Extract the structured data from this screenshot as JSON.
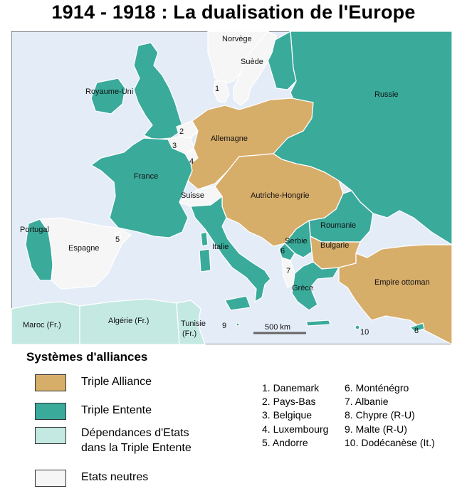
{
  "title": "1914 - 1918 : La dualisation de l'Europe",
  "colors": {
    "sea": "#e3ecf7",
    "triple_alliance": "#d7ad6a",
    "triple_entente": "#3aaa9b",
    "dependances": "#c3e9e2",
    "neutres": "#f6f6f6",
    "border": "#ffffff"
  },
  "map": {
    "countries": {
      "norvege": "Norvège",
      "suede": "Suède",
      "russie": "Russie",
      "royaume_uni": "Royaume-Uni",
      "allemagne": "Allemagne",
      "france": "France",
      "suisse": "Suisse",
      "autriche_hongrie": "Autriche-Hongrie",
      "roumanie": "Roumanie",
      "serbie": "Serbie",
      "bulgarie": "Bulgarie",
      "portugal": "Portugal",
      "espagne": "Espagne",
      "italie": "Italie",
      "grece": "Grèce",
      "empire_ottoman": "Empire ottoman",
      "maroc": "Maroc (Fr.)",
      "algerie": "Algérie (Fr.)",
      "tunisie_1": "Tunisie",
      "tunisie_2": "(Fr.)"
    },
    "numbers": [
      "1",
      "2",
      "3",
      "4",
      "5",
      "6",
      "7",
      "8",
      "9",
      "10"
    ],
    "scale": "500 km"
  },
  "legend": {
    "title": "Systèmes d'alliances",
    "items": [
      {
        "label": "Triple Alliance"
      },
      {
        "label": "Triple Entente"
      },
      {
        "label_1": "Dépendances d'Etats",
        "label_2": "dans la Triple Entente"
      },
      {
        "label": "Etats neutres"
      }
    ]
  },
  "notes": [
    "1. Danemark",
    "2. Pays-Bas",
    "3. Belgique",
    "4. Luxembourg",
    "5. Andorre",
    "6. Monténégro",
    "7. Albanie",
    "8. Chypre (R-U)",
    "9. Malte (R-U)",
    "10. Dodécanèse (It.)"
  ]
}
